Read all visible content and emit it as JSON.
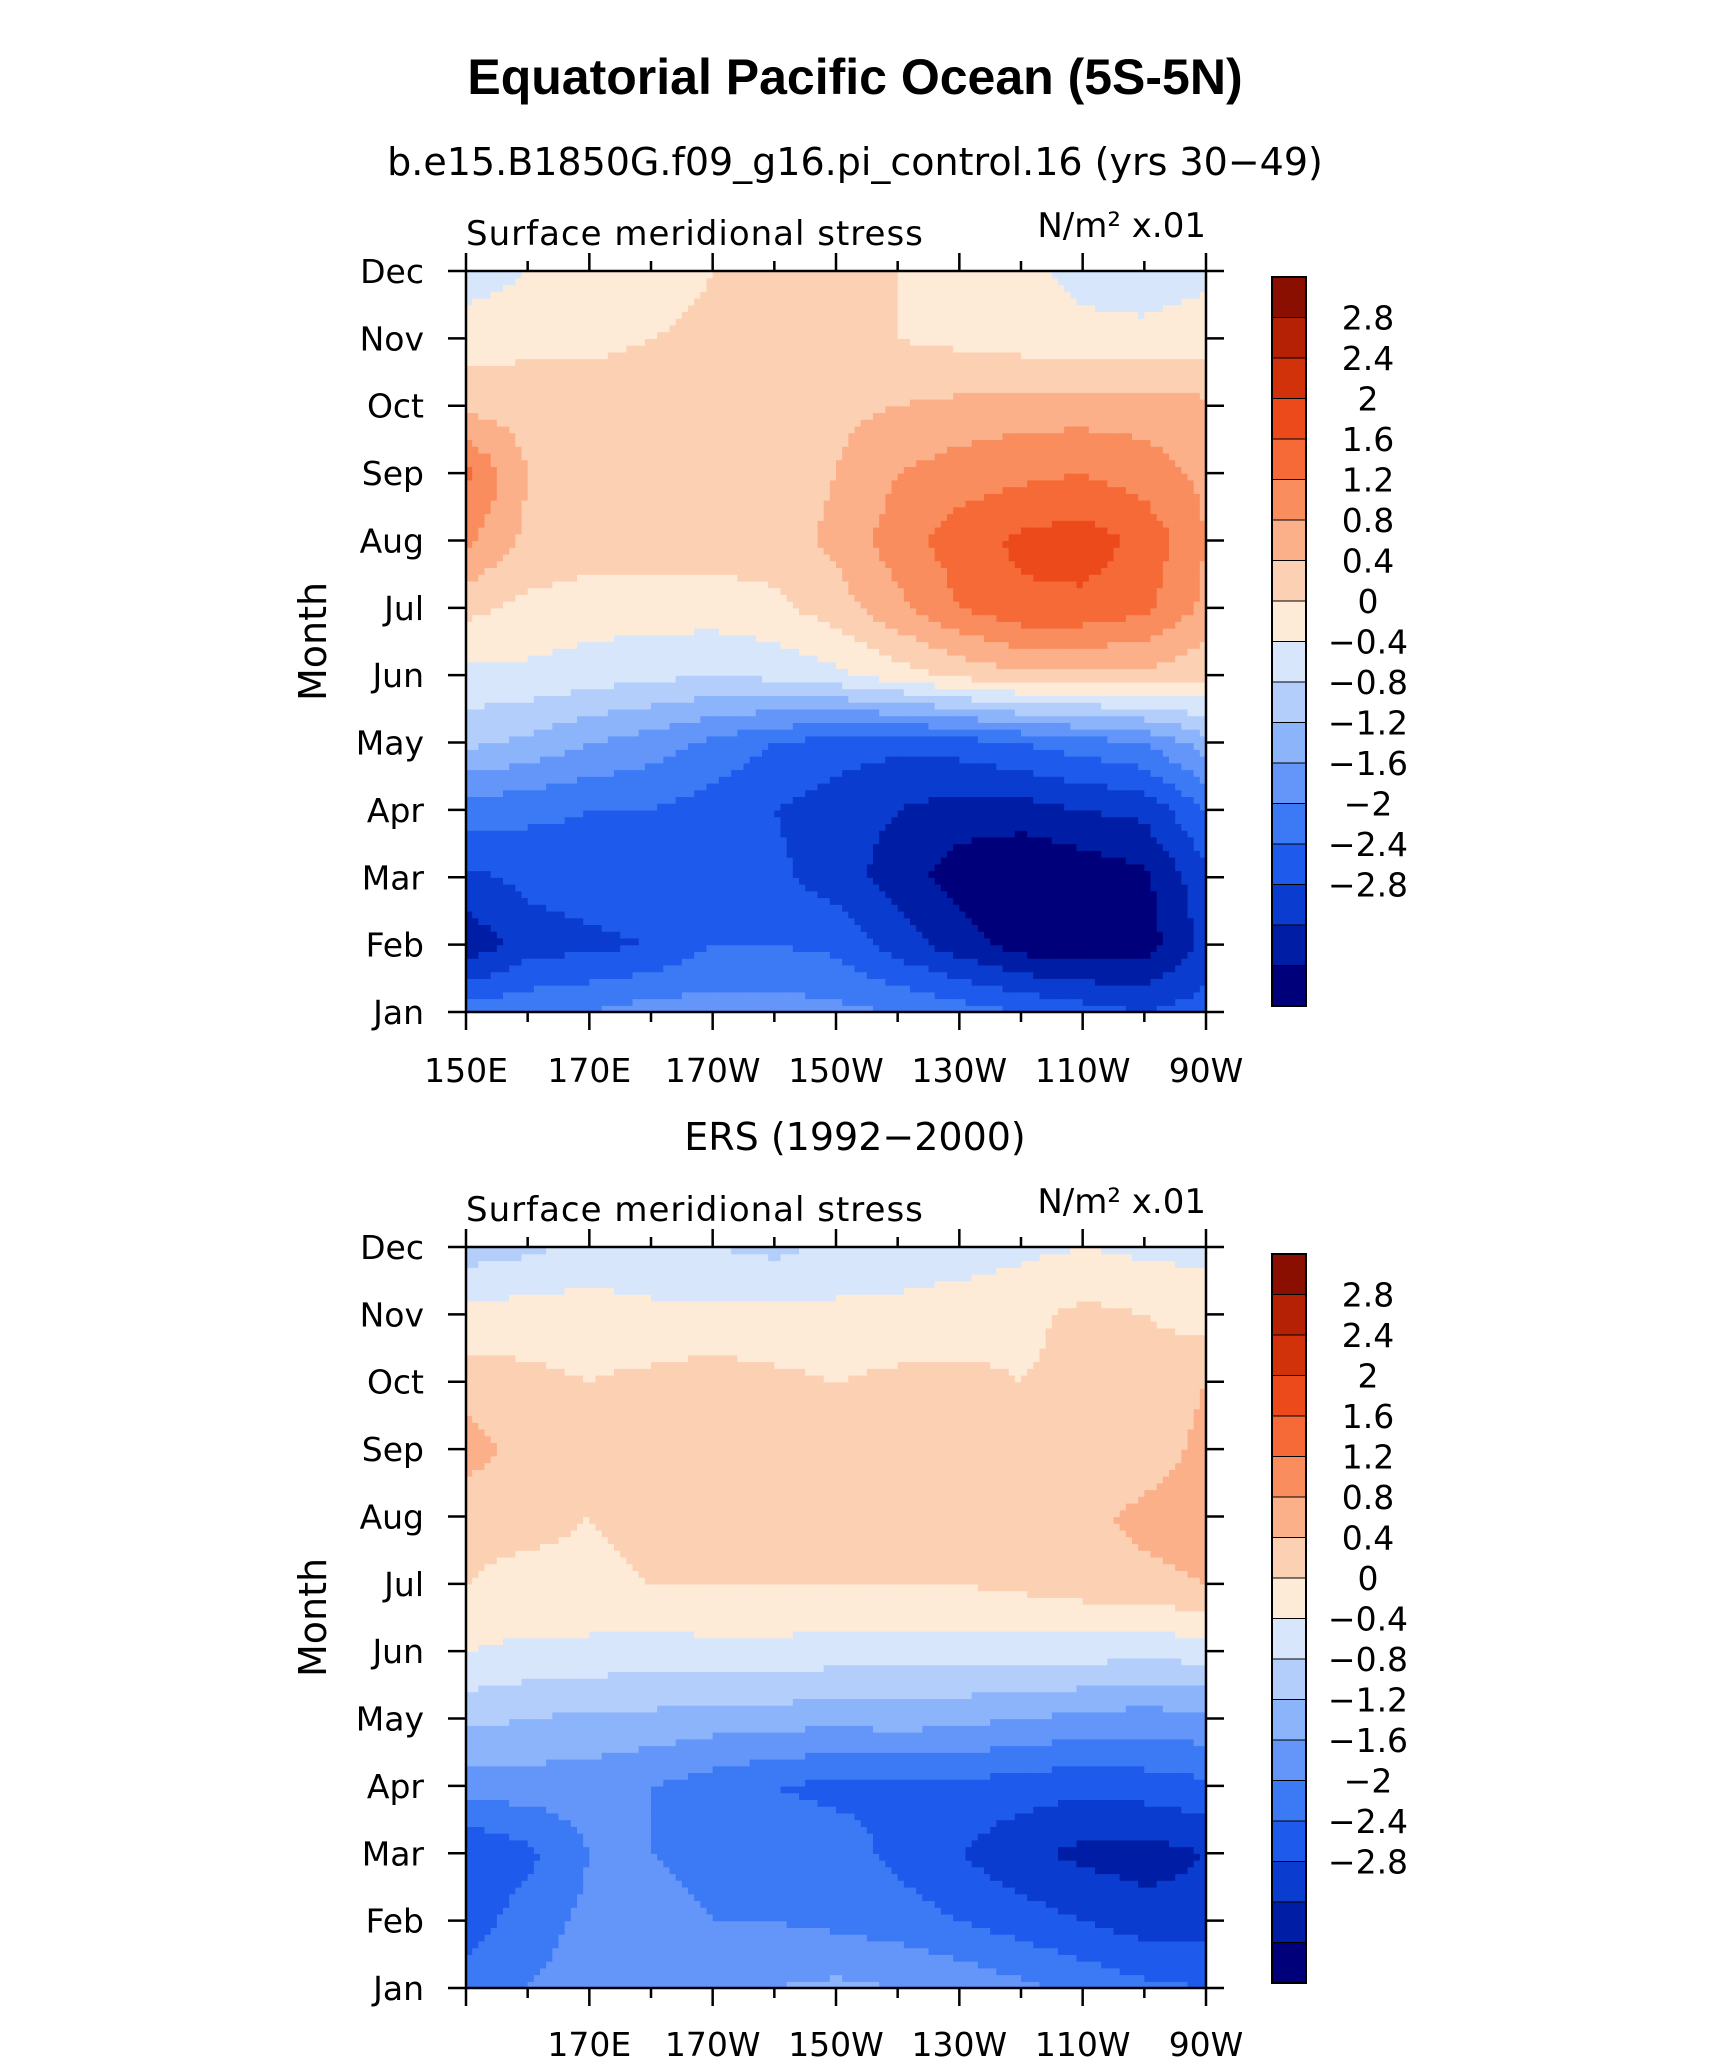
{
  "title": "Equatorial Pacific Ocean (5S-5N)",
  "chart_data": [
    {
      "type": "heatmap",
      "title": "b.e15.B1850G.f09_g16.pi_control.16 (yrs 30−49)",
      "left_label": "Surface meridional stress",
      "units": "N/m² x.01",
      "xlabel": "",
      "ylabel": "Month",
      "x_ticks": [
        "150E",
        "170E",
        "170W",
        "150W",
        "130W",
        "110W",
        "90W"
      ],
      "x_values": [
        150,
        170,
        190,
        210,
        230,
        250,
        270
      ],
      "xlim": [
        150,
        270
      ],
      "months": [
        "Jan",
        "Feb",
        "Mar",
        "Apr",
        "May",
        "Jun",
        "Jul",
        "Aug",
        "Sep",
        "Oct",
        "Nov",
        "Dec"
      ],
      "levels": [
        -2.8,
        -2.4,
        -2.0,
        -1.6,
        -1.2,
        -0.8,
        -0.4,
        0,
        0.4,
        0.8,
        1.2,
        1.6,
        2.0,
        2.4,
        2.8
      ],
      "colorbar_labels": [
        "2.8",
        "2.4",
        "2",
        "1.6",
        "1.2",
        "0.8",
        "0.4",
        "0",
        "−0.4",
        "−0.8",
        "−1.2",
        "−1.6",
        "−2",
        "−2.4",
        "−2.8"
      ],
      "grid_x": [
        150,
        160,
        170,
        180,
        190,
        200,
        210,
        220,
        230,
        240,
        250,
        260,
        270
      ],
      "grid_y": [
        1,
        2,
        3,
        4,
        5,
        6,
        7,
        8,
        9,
        10,
        11,
        12
      ],
      "z": [
        [
          -1.4,
          -1.3,
          -1.2,
          -1.0,
          -1.0,
          -1.0,
          -1.1,
          -1.2,
          -1.4,
          -1.6,
          -1.8,
          -2.0,
          -1.8
        ],
        [
          -2.7,
          -2.2,
          -2.1,
          -2.0,
          -1.6,
          -1.6,
          -1.7,
          -2.2,
          -2.6,
          -3.0,
          -3.1,
          -3.0,
          -2.3
        ],
        [
          -2.1,
          -1.9,
          -1.8,
          -1.7,
          -1.7,
          -1.9,
          -2.2,
          -2.6,
          -3.0,
          -3.2,
          -3.1,
          -2.9,
          -2.1
        ],
        [
          -1.4,
          -1.5,
          -1.6,
          -1.6,
          -1.8,
          -2.0,
          -2.2,
          -2.4,
          -2.6,
          -2.6,
          -2.4,
          -2.3,
          -1.6
        ],
        [
          -0.3,
          -0.5,
          -0.8,
          -1.0,
          -1.3,
          -1.6,
          -1.8,
          -1.9,
          -1.8,
          -1.6,
          -1.4,
          -1.2,
          -0.6
        ],
        [
          0.3,
          0.3,
          0.2,
          0.1,
          0.0,
          0.1,
          0.3,
          0.6,
          0.9,
          1.1,
          1.1,
          1.1,
          0.9
        ],
        [
          0.9,
          0.7,
          0.6,
          0.6,
          0.6,
          0.7,
          1.0,
          1.5,
          2.0,
          2.3,
          2.3,
          2.1,
          1.5
        ],
        [
          1.7,
          1.1,
          1.0,
          1.0,
          1.0,
          1.0,
          1.3,
          1.8,
          2.2,
          2.5,
          2.6,
          2.3,
          1.6
        ],
        [
          2.1,
          1.2,
          1.0,
          1.0,
          1.0,
          1.0,
          1.2,
          1.6,
          1.8,
          1.9,
          2.0,
          1.8,
          1.5
        ],
        [
          1.1,
          1.0,
          1.0,
          1.0,
          1.0,
          1.0,
          1.1,
          1.2,
          1.3,
          1.4,
          1.4,
          1.4,
          1.3
        ],
        [
          0.6,
          0.7,
          0.7,
          0.8,
          0.9,
          0.9,
          0.9,
          0.8,
          0.7,
          0.6,
          0.5,
          0.5,
          0.6
        ],
        [
          0.2,
          0.4,
          0.5,
          0.6,
          0.8,
          0.9,
          0.9,
          0.8,
          0.7,
          0.5,
          0.3,
          0.2,
          0.3
        ]
      ]
    },
    {
      "type": "heatmap",
      "title": "ERS (1992−2000)",
      "left_label": "Surface meridional stress",
      "units": "N/m² x.01",
      "xlabel": "",
      "ylabel": "Month",
      "x_ticks": [
        "170E",
        "170W",
        "150W",
        "130W",
        "110W",
        "90W"
      ],
      "x_values": [
        170,
        190,
        210,
        230,
        250,
        270
      ],
      "xlim": [
        150,
        270
      ],
      "months": [
        "Jan",
        "Feb",
        "Mar",
        "Apr",
        "May",
        "Jun",
        "Jul",
        "Aug",
        "Sep",
        "Oct",
        "Nov",
        "Dec"
      ],
      "levels": [
        -2.8,
        -2.4,
        -2.0,
        -1.6,
        -1.2,
        -0.8,
        -0.4,
        0,
        0.4,
        0.8,
        1.2,
        1.6,
        2.0,
        2.4,
        2.8
      ],
      "colorbar_labels": [
        "2.8",
        "2.4",
        "2",
        "1.6",
        "1.2",
        "0.8",
        "0.4",
        "0",
        "−0.4",
        "−0.8",
        "−1.2",
        "−1.6",
        "−2",
        "−2.4",
        "−2.8"
      ],
      "grid_x": [
        150,
        160,
        170,
        180,
        190,
        200,
        210,
        220,
        230,
        240,
        250,
        260,
        270
      ],
      "grid_y": [
        1,
        2,
        3,
        4,
        5,
        6,
        7,
        8,
        9,
        10,
        11,
        12
      ],
      "z": [
        [
          -1.4,
          -1.2,
          -1.0,
          -0.9,
          -0.9,
          -0.8,
          -0.7,
          -0.8,
          -0.9,
          -1.1,
          -1.3,
          -1.5,
          -1.6
        ],
        [
          -1.8,
          -1.4,
          -1.1,
          -1.1,
          -1.2,
          -1.2,
          -1.3,
          -1.4,
          -1.6,
          -1.8,
          -2.0,
          -2.2,
          -2.2
        ],
        [
          -2.0,
          -1.7,
          -1.2,
          -1.2,
          -1.3,
          -1.4,
          -1.4,
          -1.7,
          -2.0,
          -2.3,
          -2.5,
          -2.6,
          -2.4
        ],
        [
          -1.0,
          -1.0,
          -1.0,
          -1.2,
          -1.4,
          -1.6,
          -1.7,
          -1.7,
          -1.7,
          -1.8,
          -1.9,
          -1.8,
          -1.7
        ],
        [
          -0.3,
          -0.4,
          -0.5,
          -0.5,
          -0.6,
          -0.6,
          -0.7,
          -0.6,
          -0.7,
          -0.8,
          -0.9,
          -1.0,
          -0.9
        ],
        [
          0.4,
          0.3,
          0.3,
          0.2,
          0.3,
          0.3,
          0.2,
          0.2,
          0.2,
          0.2,
          0.2,
          0.1,
          0.2
        ],
        [
          0.8,
          0.7,
          0.7,
          0.8,
          0.8,
          0.8,
          0.8,
          0.8,
          0.8,
          0.9,
          1.0,
          1.1,
          1.2
        ],
        [
          0.9,
          0.9,
          0.8,
          0.9,
          0.9,
          1.0,
          1.0,
          1.1,
          1.0,
          0.9,
          1.1,
          1.3,
          1.4
        ],
        [
          1.4,
          1.0,
          0.8,
          0.9,
          1.0,
          1.0,
          1.0,
          1.0,
          0.9,
          0.8,
          0.8,
          1.0,
          1.3
        ],
        [
          1.0,
          0.9,
          0.8,
          0.9,
          1.0,
          0.9,
          0.8,
          0.9,
          0.9,
          0.8,
          0.9,
          1.0,
          1.2
        ],
        [
          0.5,
          0.6,
          0.6,
          0.5,
          0.5,
          0.5,
          0.5,
          0.5,
          0.6,
          0.7,
          0.9,
          0.8,
          0.6
        ],
        [
          -0.2,
          -0.1,
          0.1,
          0.1,
          0.0,
          -0.1,
          0.1,
          0.2,
          0.2,
          0.3,
          0.4,
          0.3,
          0.3
        ]
      ]
    }
  ],
  "colors": {
    "negative": [
      "#00007a",
      "#001ea5",
      "#0a3ccf",
      "#1e5aeb",
      "#3c7af5",
      "#6496fa",
      "#8cb4fb",
      "#b4cefb",
      "#d7e6fb"
    ],
    "positive": [
      "#fdebd8",
      "#fcd0b2",
      "#fbb08a",
      "#f98d5e",
      "#f56a36",
      "#ec4a1a",
      "#d23209",
      "#b52105",
      "#8a0f00"
    ]
  }
}
